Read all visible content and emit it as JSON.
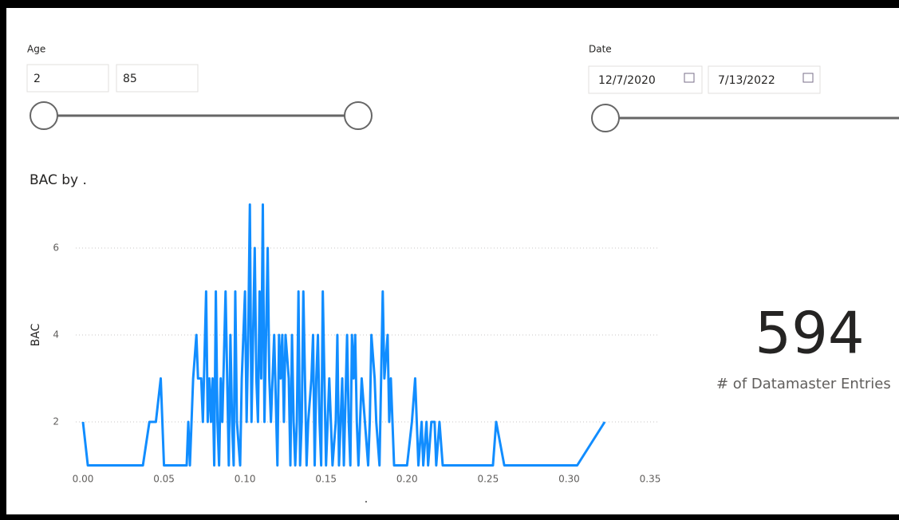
{
  "age_slicer": {
    "title": "Age",
    "min": "2",
    "max": "85"
  },
  "date_slicer": {
    "title": "Date",
    "start": "12/7/2020",
    "end": "7/13/2022"
  },
  "chart_data": {
    "type": "line",
    "title": "BAC by .",
    "y_label": "BAC",
    "x_label": ".",
    "color": "#118DFF",
    "x": [
      0.0,
      0.003,
      0.037,
      0.041,
      0.045,
      0.048,
      0.05,
      0.064,
      0.065,
      0.066,
      0.068,
      0.07,
      0.071,
      0.073,
      0.074,
      0.076,
      0.077,
      0.078,
      0.079,
      0.08,
      0.081,
      0.082,
      0.083,
      0.084,
      0.085,
      0.086,
      0.088,
      0.089,
      0.09,
      0.091,
      0.092,
      0.093,
      0.094,
      0.095,
      0.097,
      0.098,
      0.1,
      0.101,
      0.102,
      0.103,
      0.104,
      0.106,
      0.107,
      0.108,
      0.109,
      0.11,
      0.111,
      0.112,
      0.113,
      0.114,
      0.115,
      0.116,
      0.117,
      0.118,
      0.12,
      0.121,
      0.122,
      0.123,
      0.124,
      0.125,
      0.127,
      0.128,
      0.129,
      0.13,
      0.131,
      0.132,
      0.133,
      0.134,
      0.135,
      0.136,
      0.137,
      0.138,
      0.139,
      0.141,
      0.142,
      0.143,
      0.144,
      0.145,
      0.146,
      0.147,
      0.148,
      0.149,
      0.15,
      0.152,
      0.153,
      0.154,
      0.156,
      0.157,
      0.158,
      0.16,
      0.161,
      0.163,
      0.164,
      0.165,
      0.166,
      0.167,
      0.168,
      0.169,
      0.17,
      0.171,
      0.172,
      0.174,
      0.176,
      0.177,
      0.178,
      0.18,
      0.181,
      0.183,
      0.184,
      0.185,
      0.186,
      0.188,
      0.189,
      0.19,
      0.191,
      0.192,
      0.195,
      0.2,
      0.203,
      0.205,
      0.207,
      0.209,
      0.21,
      0.212,
      0.213,
      0.215,
      0.217,
      0.218,
      0.22,
      0.222,
      0.253,
      0.255,
      0.26,
      0.305,
      0.322
    ],
    "values": [
      2,
      1,
      1,
      2,
      2,
      3,
      1,
      1,
      2,
      1,
      3,
      4,
      3,
      3,
      2,
      5,
      2,
      3,
      2,
      3,
      1,
      5,
      2,
      1,
      3,
      2,
      5,
      3,
      1,
      4,
      2,
      1,
      5,
      2,
      1,
      3,
      5,
      2,
      4,
      7,
      2,
      6,
      3,
      2,
      5,
      3,
      7,
      2,
      4,
      6,
      3,
      2,
      3,
      4,
      1,
      4,
      3,
      4,
      2,
      4,
      3,
      1,
      4,
      2,
      1,
      2,
      5,
      1,
      2,
      5,
      3,
      1,
      2,
      3,
      4,
      1,
      3,
      4,
      2,
      1,
      5,
      3,
      1,
      3,
      2,
      1,
      2,
      4,
      1,
      3,
      1,
      4,
      2,
      1,
      4,
      3,
      4,
      2,
      1,
      2,
      3,
      2,
      1,
      2,
      4,
      3,
      2,
      1,
      3,
      5,
      3,
      4,
      2,
      3,
      2,
      1,
      1,
      1,
      2,
      3,
      1,
      2,
      1,
      2,
      1,
      2,
      2,
      1,
      2,
      1,
      1,
      2,
      1,
      1,
      2
    ],
    "xlim": [
      0,
      0.35
    ],
    "ylim": [
      1,
      7
    ],
    "xticks": [
      {
        "value": 0,
        "label": "0.00"
      },
      {
        "value": 0.05,
        "label": "0.05"
      },
      {
        "value": 0.1,
        "label": "0.10"
      },
      {
        "value": 0.15,
        "label": "0.15"
      },
      {
        "value": 0.2,
        "label": "0.20"
      },
      {
        "value": 0.25,
        "label": "0.25"
      },
      {
        "value": 0.3,
        "label": "0.30"
      },
      {
        "value": 0.35,
        "label": "0.35"
      }
    ],
    "yticks": [
      2,
      4,
      6
    ],
    "grid": true
  },
  "card": {
    "value": "594",
    "label": "# of Datamaster Entries"
  }
}
